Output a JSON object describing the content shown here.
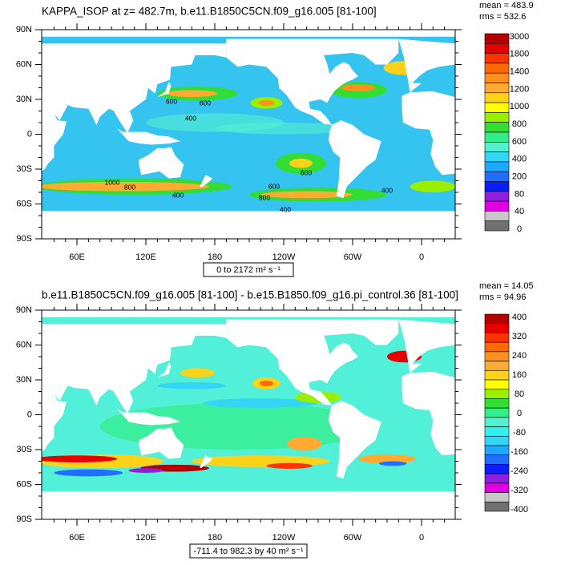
{
  "panels": [
    {
      "title": "KAPPA_ISOP at z= 482.7m, b.e11.B1850C5CN.f09_g16.005 [81-100]",
      "stats": [
        "mean = 483.9",
        "rms = 532.6"
      ],
      "range": "0 to 2172 m² s⁻¹",
      "colorbar": {
        "labels": [
          "3000",
          "1800",
          "1400",
          "1200",
          "1000",
          "800",
          "600",
          "400",
          "200",
          "80",
          "40",
          "0"
        ],
        "colors": [
          "#b30000",
          "#e60000",
          "#ff3300",
          "#ff6a00",
          "#ff8f1f",
          "#ffaa33",
          "#ffd21a",
          "#ffff00",
          "#9aee00",
          "#33dd33",
          "#33ee88",
          "#55f0d0",
          "#33d7f5",
          "#1fa8ff",
          "#1f6eff",
          "#0a1eff",
          "#8f1fdf",
          "#e100e1",
          "#c8c8c8",
          "#707070"
        ]
      },
      "contour_labels": [
        "600",
        "600",
        "400",
        "600",
        "600",
        "800",
        "400",
        "400",
        "1000",
        "800",
        "400"
      ]
    },
    {
      "title": "b.e11.B1850C5CN.f09_g16.005 [81-100] - b.e15.B1850.f09_g16.pi_control.36 [81-100]",
      "stats": [
        "mean = 14.05",
        "rms = 94.96"
      ],
      "range": "-711.4 to 982.3 by 40 m² s⁻¹",
      "colorbar": {
        "labels": [
          "400",
          "320",
          "240",
          "160",
          "80",
          "0",
          "-80",
          "-160",
          "-240",
          "-320",
          "-400"
        ],
        "colors": [
          "#b30000",
          "#e60000",
          "#ff3300",
          "#ff6a00",
          "#ff8f1f",
          "#ffaa33",
          "#ffd21a",
          "#ffff00",
          "#9aee00",
          "#33dd33",
          "#33ee88",
          "#55f0d0",
          "#33f0f0",
          "#33d7f5",
          "#1fa8ff",
          "#1f6eff",
          "#0a1eff",
          "#8f1fdf",
          "#e100e1",
          "#c8c8c8",
          "#707070"
        ]
      }
    }
  ],
  "lat_labels": [
    "90N",
    "60N",
    "30N",
    "0",
    "30S",
    "60S",
    "90S"
  ],
  "lon_labels": [
    "60E",
    "120E",
    "180",
    "120W",
    "60W",
    "0"
  ]
}
